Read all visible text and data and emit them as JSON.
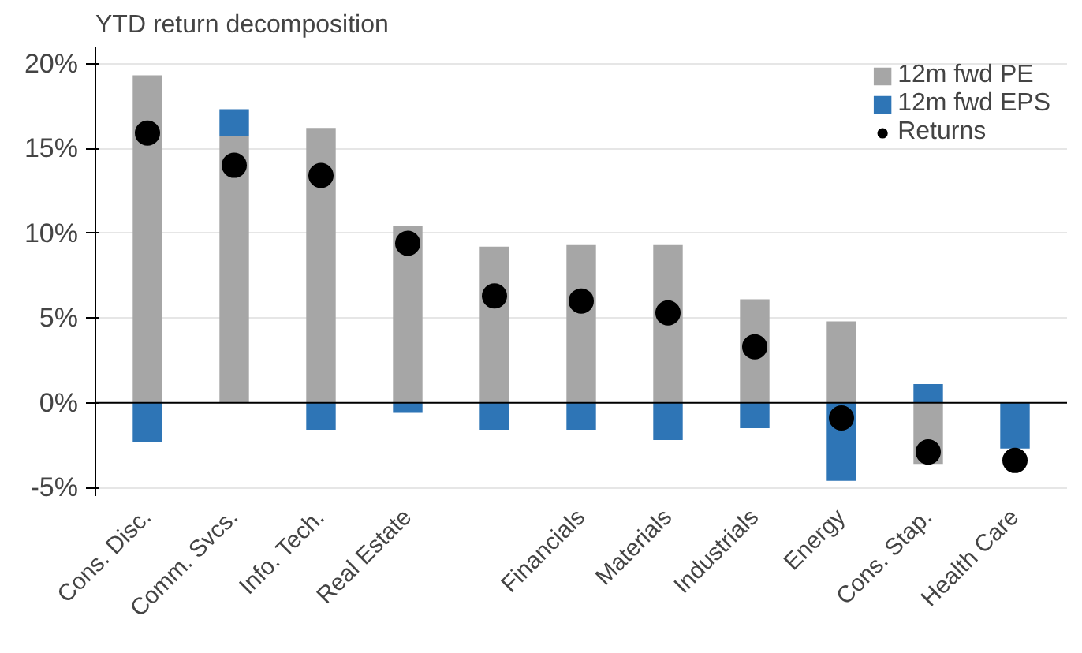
{
  "chart_data": {
    "type": "bar",
    "stacked": true,
    "title": "YTD return decomposition",
    "categories": [
      "Cons. Disc.",
      "Comm. Svcs.",
      "Info. Tech.",
      "Real Estate",
      null,
      "Financials",
      "Materials",
      "Industrials",
      "Energy",
      "Cons. Stap.",
      "Health Care"
    ],
    "series": [
      {
        "name": "12m fwd PE",
        "color": "#a6a6a6",
        "values": [
          19.3,
          15.7,
          16.2,
          10.4,
          9.2,
          9.3,
          9.3,
          6.1,
          4.8,
          -3.6,
          null
        ]
      },
      {
        "name": "12m fwd EPS",
        "color": "#2e75b6",
        "values": [
          -2.3,
          1.6,
          -1.6,
          -0.6,
          -1.6,
          -1.6,
          -2.2,
          -1.5,
          -4.6,
          1.1,
          -2.7
        ]
      },
      {
        "name": "Returns",
        "color": "#000000",
        "type": "scatter",
        "marker": "circle",
        "values": [
          15.9,
          14.0,
          13.4,
          9.4,
          6.3,
          6.0,
          5.3,
          3.3,
          -0.9,
          -2.9,
          -3.4
        ]
      }
    ],
    "ylim": [
      -5.5,
      21
    ],
    "yticks": [
      {
        "value": -5,
        "label": "-5%"
      },
      {
        "value": 0,
        "label": "0%"
      },
      {
        "value": 5,
        "label": "5%"
      },
      {
        "value": 10,
        "label": "10%"
      },
      {
        "value": 15,
        "label": "15%"
      },
      {
        "value": 20,
        "label": "20%"
      }
    ],
    "grid": "y",
    "legend": "top right"
  }
}
